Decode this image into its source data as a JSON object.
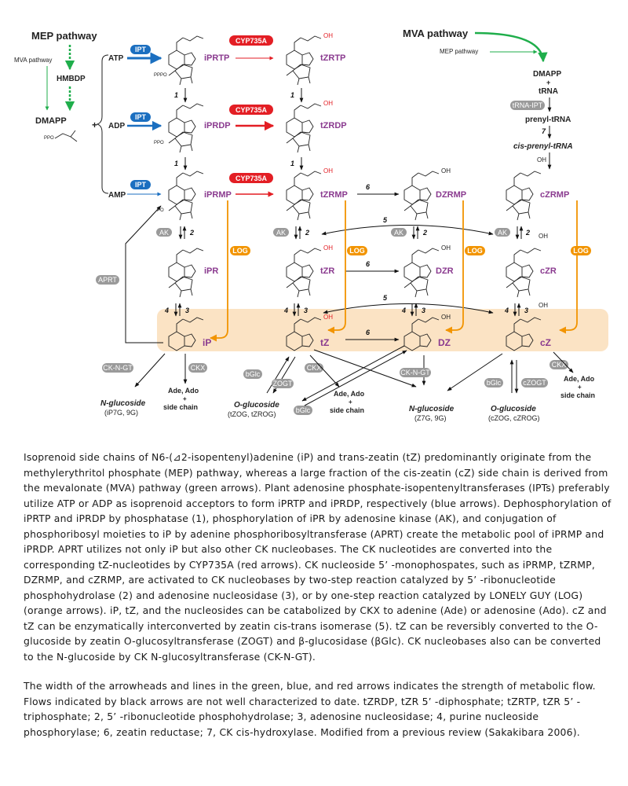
{
  "diagram": {
    "mep_title": "MEP pathway",
    "mva_title": "MVA pathway",
    "mva_small": "MVA pathway",
    "mep_small": "MEP pathway",
    "hmbdp": "HMBDP",
    "dmapp": "DMAPP",
    "ppo": "PPO",
    "plus": "+",
    "atp": "ATP",
    "adp": "ADP",
    "amp": "AMP",
    "ipt": "IPT",
    "cyp": "CYP735A",
    "iprtp": "iPRTP",
    "tzrtp": "tZRTP",
    "iprdp": "iPRDP",
    "tzrdp": "tZRDP",
    "iprmp": "iPRMP",
    "tzrmp": "tZRMP",
    "dzrmp": "DZRMP",
    "czrmp": "cZRMP",
    "ipr": "iPR",
    "tzr": "tZR",
    "dzr": "DZR",
    "czr": "cZR",
    "ip": "iP",
    "tz": "tZ",
    "dz": "DZ",
    "cz": "cZ",
    "mva_dmapp": "DMAPP",
    "mva_plus": "+",
    "trna": "tRNA",
    "trna_ipt": "tRNA-IPT",
    "prenyl_trna": "prenyl-tRNA",
    "cis_prenyl_trna": "cis-prenyl-tRNA",
    "ak": "AK",
    "log": "LOG",
    "aprt": "APRT",
    "ckngt": "CK-N-GT",
    "ckx": "CKX",
    "bglc": "bGlc",
    "zogt": "ZOGT",
    "czogt": "cZOGT",
    "num1": "1",
    "num2": "2",
    "num3": "3",
    "num4": "4",
    "num5": "5",
    "num6": "6",
    "num7": "7",
    "oh": "OH",
    "po": "PO",
    "ppo2": "PPO",
    "pppo": "PPPO",
    "ho": "HO",
    "hn": "HN",
    "n": "N",
    "h": "H",
    "ade_ado": "Ade, Ado",
    "side_chain": "side chain",
    "n_glucoside": "N-glucoside",
    "n_gluc_ip": "(iP7G, 9G)",
    "o_glucoside": "O-glucoside",
    "o_gluc_t": "(tZOG, tZROG)",
    "n_gluc_z": "(Z7G, 9G)",
    "o_gluc_c": "(cZOG, cZROG)"
  },
  "caption": {
    "p1": "Isoprenoid side chains of N6-(⊿2-isopentenyl)adenine (iP) and trans-zeatin (tZ) predominantly originate from the methylerythritol phosphate (MEP) pathway, whereas a large fraction of the cis-zeatin (cZ) side chain is derived from the mevalonate (MVA) pathway (green arrows). Plant adenosine phosphate-isopentenyltransferases (IPTs) preferably utilize ATP or ADP as isoprenoid acceptors to form iPRTP and iPRDP, respectively (blue arrows). Dephosphorylation of iPRTP and iPRDP by phosphatase (1), phosphorylation of iPR by adenosine kinase (AK), and conjugation of phosphoribosyl moieties to iP by adenine phosphoribosyltransferase (APRT) create the metabolic pool of iPRMP and iPRDP. APRT utilizes not only iP but also other CK nucleobases. The CK nucleotides are converted into the corresponding tZ-nucleotides by CYP735A (red arrows). CK nucleoside 5’ -monophospates, such as iPRMP, tZRMP, DZRMP, and cZRMP, are activated to CK nucleobases by two-step reaction catalyzed by 5’ -ribonucleotide phosphohydrolase (2) and adenosine nucleosidase (3), or by one-step reaction catalyzed by LONELY GUY (LOG) (orange arrows). iP, tZ, and the nucleosides can be catabolized by CKX to adenine (Ade) or adenosine (Ado). cZ and tZ can be enzymatically interconverted by zeatin cis-trans isomerase (5). tZ can be reversibly converted to the O-glucoside by zeatin O-glucosyltransferase (ZOGT) and β-glucosidase (βGlc). CK nucleobases also can be converted to the N-glucoside by CK N-glucosyltransferase (CK-N-GT).",
    "p2": "The width of the arrowheads and lines in the green, blue, and red arrows indicates the strength of metabolic flow. Flows indicated by black arrows are not well characterized to date. tZRDP, tZR 5’ -diphosphate; tZRTP, tZR 5’ -triphosphate; 2, 5’ -ribonucleotide phosphohydrolase; 3, adenosine nucleosidase; 4, purine nucleoside phosphorylase; 6, zeatin reductase; 7, CK cis-hydroxylase. Modified from a previous review (Sakakibara 2006)."
  },
  "colors": {
    "green": "#1fae4b",
    "blue": "#1b6fc0",
    "red": "#e31e24",
    "orange": "#f29400",
    "purple": "#8a3a8f",
    "gray_pill": "#9a9a9a",
    "highlight": "#fbe3c4"
  }
}
